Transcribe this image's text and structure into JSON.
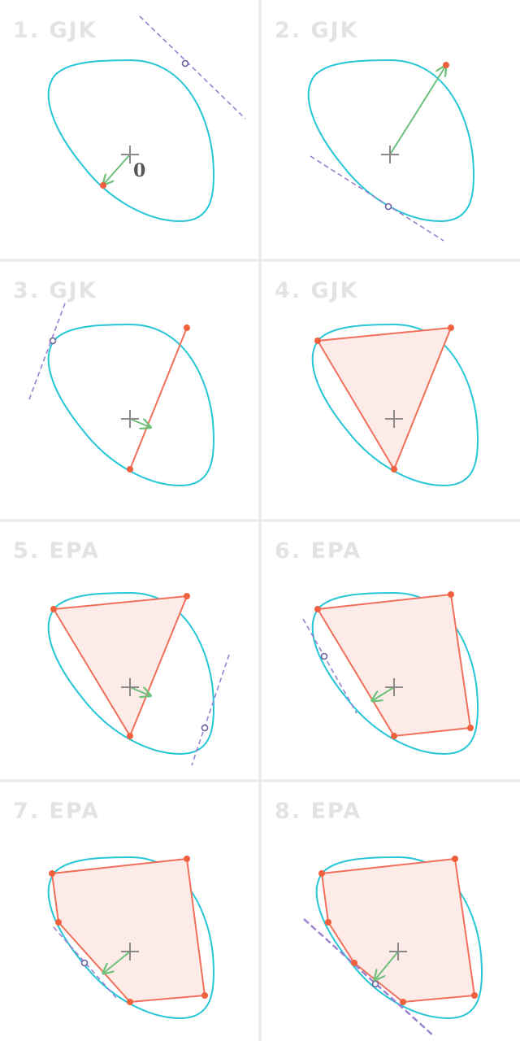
{
  "colors": {
    "background": "#ffffff",
    "divider": "#e9e9e9",
    "shape_outline": "#26c6d6",
    "polytope_edge": "#f0705a",
    "polytope_fill": "#fdebe8",
    "vertex": "#f0603f",
    "support_point": "#6e5fa0",
    "tangent_line": "#9b7fd0",
    "direction_arrow": "#6cc17a",
    "origin_cross": "#8a8a8a",
    "title": "#e3e3e3"
  },
  "panels": [
    {
      "title": "1. GJK",
      "origin_label": "0"
    },
    {
      "title": "2. GJK"
    },
    {
      "title": "3. GJK"
    },
    {
      "title": "4. GJK"
    },
    {
      "title": "5. EPA"
    },
    {
      "title": "6. EPA"
    },
    {
      "title": "7. EPA"
    },
    {
      "title": "8. EPA"
    }
  ]
}
